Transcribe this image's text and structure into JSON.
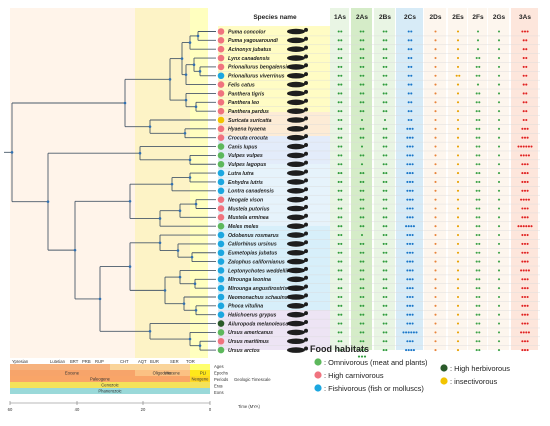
{
  "header": {
    "species_title": "Species name"
  },
  "gene_columns": [
    "1As",
    "2As",
    "2Bs",
    "2Cs",
    "2Ds",
    "2Es",
    "2Fs",
    "2Gs",
    "3As"
  ],
  "habitat_colors": {
    "omnivorous": "#5db85c",
    "carnivorous": "#f0737f",
    "fishivorous": "#1ca7e0",
    "herbivorous": "#2a5a2a",
    "insectivorous": "#f2c400"
  },
  "species": [
    {
      "name": "Puma concolor",
      "habitat": "carnivorous",
      "counts": [
        2,
        2,
        2,
        2,
        1,
        1,
        1,
        1,
        3
      ]
    },
    {
      "name": "Puma yagouaroundi",
      "habitat": "carnivorous",
      "counts": [
        2,
        2,
        2,
        2,
        1,
        1,
        1,
        1,
        2
      ]
    },
    {
      "name": "Acinonyx jubatus",
      "habitat": "carnivorous",
      "counts": [
        2,
        2,
        2,
        2,
        1,
        1,
        1,
        1,
        2
      ]
    },
    {
      "name": "Lynx canadensis",
      "habitat": "carnivorous",
      "counts": [
        2,
        2,
        2,
        2,
        1,
        1,
        2,
        1,
        2
      ]
    },
    {
      "name": "Prionailurus bengalensis",
      "habitat": "carnivorous",
      "counts": [
        2,
        2,
        2,
        2,
        1,
        1,
        2,
        1,
        2
      ]
    },
    {
      "name": "Prionailurus viverrinus",
      "habitat": "fishivorous",
      "counts": [
        2,
        2,
        2,
        2,
        1,
        2,
        2,
        1,
        2
      ]
    },
    {
      "name": "Felis catus",
      "habitat": "carnivorous",
      "counts": [
        2,
        2,
        2,
        2,
        1,
        1,
        1,
        1,
        2
      ]
    },
    {
      "name": "Panthera tigris",
      "habitat": "carnivorous",
      "counts": [
        2,
        2,
        2,
        2,
        1,
        1,
        2,
        1,
        2
      ]
    },
    {
      "name": "Panthera leo",
      "habitat": "carnivorous",
      "counts": [
        2,
        2,
        2,
        2,
        1,
        1,
        2,
        1,
        2
      ]
    },
    {
      "name": "Panthera pardus",
      "habitat": "carnivorous",
      "counts": [
        2,
        2,
        2,
        2,
        1,
        1,
        2,
        1,
        2
      ]
    },
    {
      "name": "Suricata suricatta",
      "habitat": "insectivorous",
      "counts": [
        2,
        1,
        1,
        2,
        1,
        1,
        2,
        1,
        2
      ]
    },
    {
      "name": "Hyaena hyaena",
      "habitat": "carnivorous",
      "counts": [
        2,
        2,
        2,
        3,
        1,
        1,
        2,
        1,
        3
      ]
    },
    {
      "name": "Crocuta crocuta",
      "habitat": "carnivorous",
      "counts": [
        2,
        2,
        2,
        3,
        1,
        1,
        2,
        1,
        3
      ]
    },
    {
      "name": "Canis lupus",
      "habitat": "omnivorous",
      "counts": [
        2,
        1,
        2,
        3,
        1,
        1,
        2,
        1,
        6
      ]
    },
    {
      "name": "Vulpes vulpes",
      "habitat": "omnivorous",
      "counts": [
        2,
        2,
        2,
        3,
        1,
        1,
        2,
        1,
        4
      ]
    },
    {
      "name": "Vulpes lagopus",
      "habitat": "omnivorous",
      "counts": [
        2,
        1,
        2,
        3,
        1,
        1,
        2,
        1,
        3
      ]
    },
    {
      "name": "Lutra lutra",
      "habitat": "fishivorous",
      "counts": [
        2,
        2,
        2,
        3,
        1,
        1,
        2,
        1,
        3
      ]
    },
    {
      "name": "Enhydra lutris",
      "habitat": "fishivorous",
      "counts": [
        2,
        2,
        2,
        3,
        1,
        1,
        2,
        1,
        3
      ]
    },
    {
      "name": "Lontra canadensis",
      "habitat": "fishivorous",
      "counts": [
        2,
        2,
        2,
        3,
        1,
        1,
        2,
        1,
        3
      ]
    },
    {
      "name": "Neogale vison",
      "habitat": "carnivorous",
      "counts": [
        2,
        2,
        2,
        3,
        1,
        1,
        2,
        1,
        4
      ]
    },
    {
      "name": "Mustela putorius",
      "habitat": "carnivorous",
      "counts": [
        2,
        2,
        2,
        3,
        1,
        1,
        2,
        1,
        3
      ]
    },
    {
      "name": "Mustela erminea",
      "habitat": "carnivorous",
      "counts": [
        2,
        2,
        2,
        3,
        1,
        1,
        2,
        1,
        3
      ]
    },
    {
      "name": "Meles meles",
      "habitat": "omnivorous",
      "counts": [
        2,
        2,
        2,
        4,
        1,
        1,
        2,
        1,
        6
      ]
    },
    {
      "name": "Odobenus rosmarus",
      "habitat": "fishivorous",
      "counts": [
        2,
        1,
        2,
        3,
        1,
        1,
        2,
        1,
        3
      ]
    },
    {
      "name": "Callorhinus ursinus",
      "habitat": "fishivorous",
      "counts": [
        2,
        2,
        2,
        3,
        1,
        1,
        2,
        1,
        3
      ]
    },
    {
      "name": "Eumetopias jubatus",
      "habitat": "fishivorous",
      "counts": [
        2,
        2,
        2,
        3,
        1,
        1,
        2,
        1,
        3
      ]
    },
    {
      "name": "Zalophus californianus",
      "habitat": "fishivorous",
      "counts": [
        2,
        2,
        2,
        3,
        1,
        1,
        2,
        1,
        3
      ]
    },
    {
      "name": "Leptonychotes weddellii",
      "habitat": "fishivorous",
      "counts": [
        2,
        2,
        2,
        3,
        1,
        1,
        2,
        1,
        4
      ]
    },
    {
      "name": "Mirounga leonina",
      "habitat": "fishivorous",
      "counts": [
        2,
        2,
        2,
        3,
        1,
        1,
        2,
        1,
        3
      ]
    },
    {
      "name": "Mirounga angustirostris",
      "habitat": "fishivorous",
      "counts": [
        2,
        2,
        2,
        3,
        1,
        1,
        2,
        1,
        3
      ]
    },
    {
      "name": "Neomonachus schauinslandi",
      "habitat": "fishivorous",
      "counts": [
        2,
        2,
        2,
        3,
        1,
        1,
        2,
        1,
        3
      ]
    },
    {
      "name": "Phoca vitulina",
      "habitat": "fishivorous",
      "counts": [
        2,
        2,
        2,
        3,
        1,
        1,
        2,
        1,
        3
      ]
    },
    {
      "name": "Halichoerus grypus",
      "habitat": "fishivorous",
      "counts": [
        2,
        2,
        2,
        3,
        1,
        1,
        2,
        1,
        3
      ]
    },
    {
      "name": "Ailuropoda melanoleuca",
      "habitat": "herbivorous",
      "counts": [
        2,
        2,
        2,
        3,
        1,
        1,
        2,
        1,
        3
      ]
    },
    {
      "name": "Ursus americanus",
      "habitat": "omnivorous",
      "counts": [
        2,
        2,
        2,
        6,
        1,
        1,
        2,
        1,
        4
      ]
    },
    {
      "name": "Ursus maritimus",
      "habitat": "carnivorous",
      "counts": [
        2,
        2,
        2,
        3,
        1,
        1,
        2,
        1,
        3
      ]
    },
    {
      "name": "Ursus arctos",
      "habitat": "omnivorous",
      "counts": [
        2,
        3,
        2,
        4,
        1,
        1,
        2,
        1,
        3
      ]
    }
  ],
  "timescale": {
    "ages_label": "Ages",
    "epochs_label": "Epochs",
    "periods_label": "Periods",
    "periods_note": "Geologic Timescale",
    "eras_label": "Eras",
    "eons_label": "Eons",
    "time_label": "Time (MYA)",
    "ages": [
      "Ypresian",
      "Lutetian",
      "BRT",
      "PRB",
      "RUP",
      "CHT",
      "AQT",
      "BUR",
      "SER",
      "TOR"
    ],
    "epochs": [
      "Eocene",
      "Oligocene",
      "Miocene",
      "PLI"
    ],
    "periods": [
      "Paleogene",
      "Neogene"
    ],
    "era": "Cenozoic",
    "eon": "Phanerozoic",
    "ticks": [
      "60",
      "40",
      "20",
      "0"
    ]
  },
  "legend": {
    "title": "Food habitats",
    "omnivorous": ": Omnivorous (meat and plants)",
    "carnivorous": ": High carnivorous",
    "fishivorous": ": Fishivorous (fish or molluscs)",
    "herbivorous": ": High herbivorous",
    "insectivorous": ": insectivorous"
  }
}
